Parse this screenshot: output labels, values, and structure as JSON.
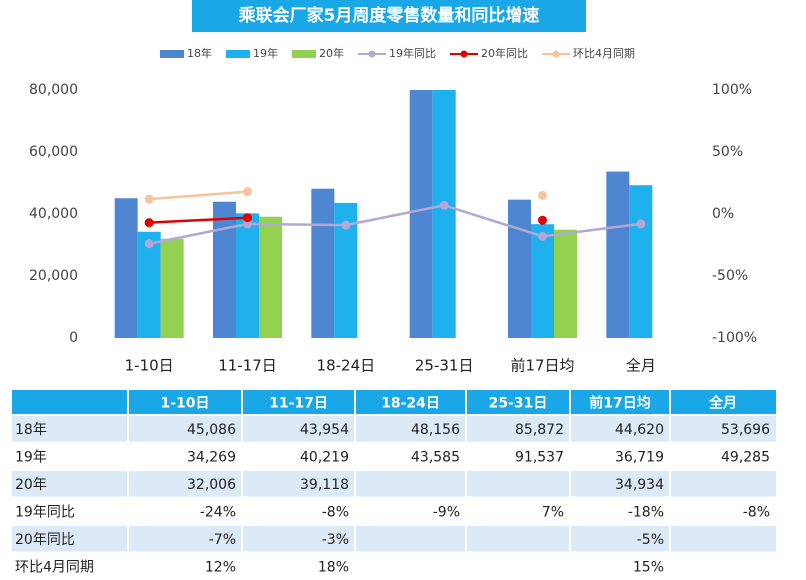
{
  "chart_data": {
    "type": "bar",
    "title": "乘联会厂家5月周度零售数量和同比增速",
    "categories": [
      "1-10日",
      "11-17日",
      "18-24日",
      "25-31日",
      "前17日均",
      "全月"
    ],
    "series": [
      {
        "name": "18年",
        "type": "bar",
        "color": "#4f86d1",
        "values": [
          45086,
          43954,
          48156,
          85872,
          44620,
          53696
        ],
        "value_labels": [
          "45,086",
          "43,954",
          "48,156",
          "85,872",
          "44,620",
          "53,696"
        ]
      },
      {
        "name": "19年",
        "type": "bar",
        "color": "#1fb0ee",
        "values": [
          34269,
          40219,
          43585,
          91537,
          36719,
          49285
        ],
        "value_labels": [
          "34,269",
          "40,219",
          "43,585",
          "91,537",
          "36,719",
          "49,285"
        ]
      },
      {
        "name": "20年",
        "type": "bar",
        "color": "#92d050",
        "values": [
          32006,
          39118,
          null,
          null,
          34934,
          null
        ],
        "value_labels": [
          "32,006",
          "39,118",
          null,
          null,
          "34,934",
          null
        ]
      },
      {
        "name": "19年同比",
        "type": "line",
        "axis": "y2",
        "color": "#b4a7d6",
        "values": [
          -24,
          -8,
          -9,
          7,
          -18,
          -8
        ],
        "value_labels": [
          "-24%",
          "-8%",
          "-9%",
          "7%",
          "-18%",
          "-8%"
        ]
      },
      {
        "name": "20年同比",
        "type": "line",
        "axis": "y2",
        "color": "#e00000",
        "values": [
          -7,
          -3,
          null,
          null,
          -5,
          null
        ],
        "value_labels": [
          "-7%",
          "-3%",
          null,
          null,
          "-5%",
          null
        ]
      },
      {
        "name": "环比4月同期",
        "type": "line",
        "axis": "y2",
        "color": "#f8c39a",
        "values": [
          12,
          18,
          null,
          null,
          15,
          null
        ],
        "value_labels": [
          "12%",
          "18%",
          null,
          null,
          "15%",
          null
        ]
      }
    ],
    "ylim": [
      0,
      80000
    ],
    "yticks": [
      0,
      {
        "value": 20000,
        "label": "20,000"
      },
      {
        "value": 40000,
        "label": "40,000"
      },
      {
        "value": 60000,
        "label": "60,000"
      },
      {
        "value": 80000,
        "label": "80,000"
      }
    ],
    "y2lim": [
      -100,
      100
    ],
    "y2ticks": [
      {
        "value": -100,
        "label": "-100%"
      },
      {
        "value": -50,
        "label": "-50%"
      },
      {
        "value": 0,
        "label": "0%"
      },
      {
        "value": 50,
        "label": "50%"
      },
      {
        "value": 100,
        "label": "100%"
      }
    ],
    "grid": false
  }
}
